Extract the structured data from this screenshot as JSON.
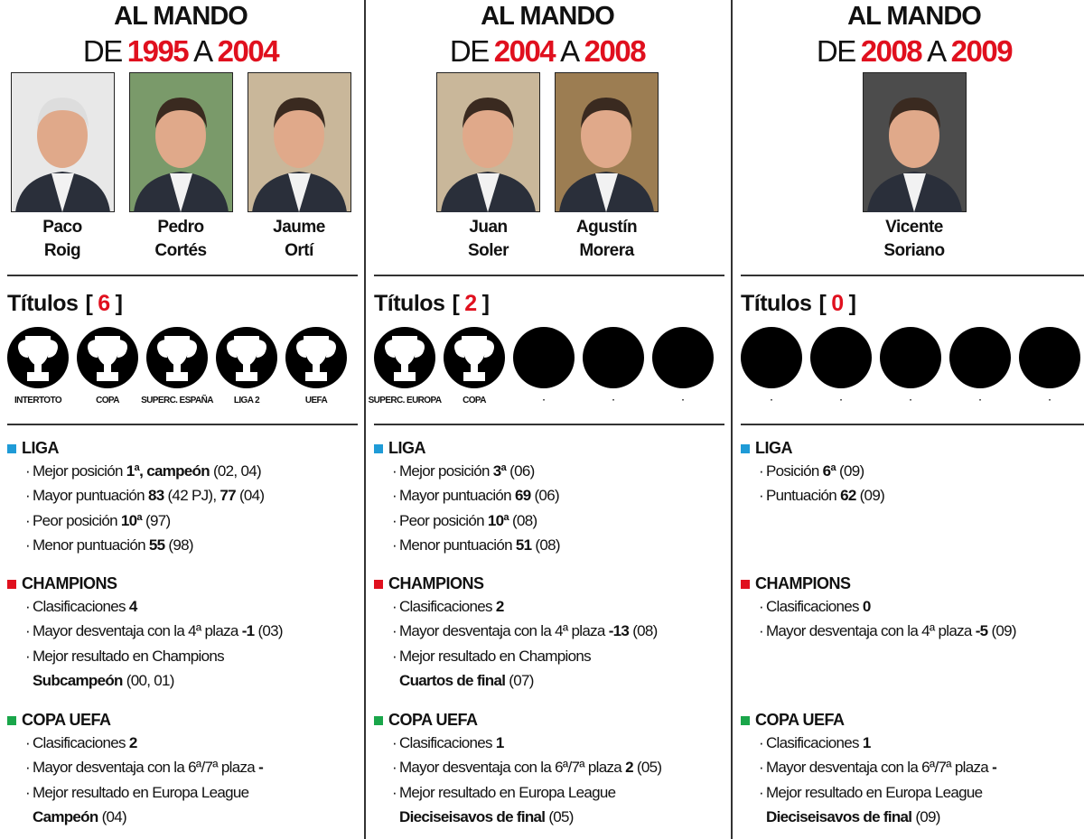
{
  "columns": [
    {
      "header": {
        "top": "AL MANDO",
        "from_word": "DE",
        "from": "1995",
        "to_word": "A",
        "to": "2004"
      },
      "people": [
        {
          "first": "Paco",
          "last": "Roig"
        },
        {
          "first": "Pedro",
          "last": "Cortés"
        },
        {
          "first": "Jaume",
          "last": "Ortí"
        }
      ],
      "titles": {
        "label": "Títulos",
        "open": "[",
        "count": 6,
        "close": "]"
      },
      "trophies": [
        {
          "label": "INTERTOTO",
          "won": true
        },
        {
          "label": "COPA",
          "won": true
        },
        {
          "label": "SUPERC. ESPAÑA",
          "won": true
        },
        {
          "label": "LIGA 2",
          "won": true
        },
        {
          "label": "UEFA",
          "won": true
        }
      ],
      "sections": [
        {
          "name": "LIGA",
          "color": "#1f9bd7",
          "lines": [
            {
              "bullet": "·",
              "parts": [
                {
                  "text": "Mejor posición "
                },
                {
                  "text": "1ª, campeón",
                  "bold": true
                },
                {
                  "text": " (02, 04)"
                }
              ]
            },
            {
              "bullet": "·",
              "parts": [
                {
                  "text": "Mayor puntuación "
                },
                {
                  "text": "83",
                  "bold": true
                },
                {
                  "text": " (42 PJ), "
                },
                {
                  "text": "77",
                  "bold": true
                },
                {
                  "text": " (04)"
                }
              ]
            },
            {
              "bullet": "·",
              "parts": [
                {
                  "text": "Peor posición "
                },
                {
                  "text": "10ª",
                  "bold": true
                },
                {
                  "text": " (97)"
                }
              ]
            },
            {
              "bullet": "·",
              "parts": [
                {
                  "text": "Menor puntuación "
                },
                {
                  "text": "55",
                  "bold": true
                },
                {
                  "text": " (98)"
                }
              ]
            }
          ]
        },
        {
          "name": "CHAMPIONS",
          "color": "#e0101e",
          "lines": [
            {
              "bullet": "·",
              "parts": [
                {
                  "text": "Clasificaciones "
                },
                {
                  "text": "4",
                  "bold": true
                }
              ]
            },
            {
              "bullet": "·",
              "parts": [
                {
                  "text": "Mayor desventaja con la 4ª plaza "
                },
                {
                  "text": "-1",
                  "bold": true
                },
                {
                  "text": " (03)"
                }
              ]
            },
            {
              "bullet": "·",
              "parts": [
                {
                  "text": "Mejor resultado en Champions"
                }
              ]
            },
            {
              "parts": [
                {
                  "text": "Subcampeón",
                  "bold": true
                },
                {
                  "text": " (00, 01)"
                }
              ]
            }
          ]
        },
        {
          "name": "COPA UEFA",
          "color": "#1aa64a",
          "lines": [
            {
              "bullet": "·",
              "parts": [
                {
                  "text": "Clasificaciones "
                },
                {
                  "text": "2",
                  "bold": true
                }
              ]
            },
            {
              "bullet": "·",
              "parts": [
                {
                  "text": "Mayor desventaja con la 6ª/7ª plaza "
                },
                {
                  "text": "-",
                  "bold": true
                }
              ]
            },
            {
              "bullet": "·",
              "parts": [
                {
                  "text": "Mejor resultado en Europa League"
                }
              ]
            },
            {
              "parts": [
                {
                  "text": "Campeón",
                  "bold": true
                },
                {
                  "text": " (04)"
                }
              ]
            }
          ]
        }
      ]
    },
    {
      "header": {
        "top": "AL MANDO",
        "from_word": "DE",
        "from": "2004",
        "to_word": "A",
        "to": "2008"
      },
      "people": [
        {
          "first": "Juan",
          "last": "Soler"
        },
        {
          "first": "Agustín",
          "last": "Morera"
        }
      ],
      "titles": {
        "label": "Títulos",
        "open": "[",
        "count": 2,
        "close": "]"
      },
      "trophies": [
        {
          "label": "SUPERC. EUROPA",
          "won": true
        },
        {
          "label": "COPA",
          "won": true
        },
        {
          "label": "·",
          "won": false
        },
        {
          "label": "·",
          "won": false
        },
        {
          "label": "·",
          "won": false
        }
      ],
      "sections": [
        {
          "name": "LIGA",
          "color": "#1f9bd7",
          "lines": [
            {
              "bullet": "·",
              "parts": [
                {
                  "text": "Mejor posición "
                },
                {
                  "text": "3ª",
                  "bold": true
                },
                {
                  "text": " (06)"
                }
              ]
            },
            {
              "bullet": "·",
              "parts": [
                {
                  "text": "Mayor puntuación "
                },
                {
                  "text": "69",
                  "bold": true
                },
                {
                  "text": " (06)"
                }
              ]
            },
            {
              "bullet": "·",
              "parts": [
                {
                  "text": "Peor posición "
                },
                {
                  "text": "10ª",
                  "bold": true
                },
                {
                  "text": " (08)"
                }
              ]
            },
            {
              "bullet": "·",
              "parts": [
                {
                  "text": "Menor puntuación "
                },
                {
                  "text": "51",
                  "bold": true
                },
                {
                  "text": " (08)"
                }
              ]
            }
          ]
        },
        {
          "name": "CHAMPIONS",
          "color": "#e0101e",
          "lines": [
            {
              "bullet": "·",
              "parts": [
                {
                  "text": "Clasificaciones "
                },
                {
                  "text": "2",
                  "bold": true
                }
              ]
            },
            {
              "bullet": "·",
              "parts": [
                {
                  "text": "Mayor desventaja con la 4ª plaza "
                },
                {
                  "text": "-13",
                  "bold": true
                },
                {
                  "text": " (08)"
                }
              ]
            },
            {
              "bullet": "·",
              "parts": [
                {
                  "text": "Mejor resultado en Champions"
                }
              ]
            },
            {
              "parts": [
                {
                  "text": "Cuartos de final",
                  "bold": true
                },
                {
                  "text": " (07)"
                }
              ]
            }
          ]
        },
        {
          "name": "COPA UEFA",
          "color": "#1aa64a",
          "lines": [
            {
              "bullet": "·",
              "parts": [
                {
                  "text": "Clasificaciones "
                },
                {
                  "text": "1",
                  "bold": true
                }
              ]
            },
            {
              "bullet": "·",
              "parts": [
                {
                  "text": "Mayor desventaja con la 6ª/7ª plaza "
                },
                {
                  "text": "2",
                  "bold": true
                },
                {
                  "text": " (05)"
                }
              ]
            },
            {
              "bullet": "·",
              "parts": [
                {
                  "text": "Mejor resultado en Europa League"
                }
              ]
            },
            {
              "parts": [
                {
                  "text": "Dieciseisavos de final",
                  "bold": true
                },
                {
                  "text": " (05)"
                }
              ]
            }
          ]
        }
      ]
    },
    {
      "header": {
        "top": "AL MANDO",
        "from_word": "DE",
        "from": "2008",
        "to_word": "A",
        "to": "2009"
      },
      "people": [
        {
          "first": "Vicente",
          "last": "Soriano"
        }
      ],
      "titles": {
        "label": "Títulos",
        "open": "[",
        "count": 0,
        "close": "]"
      },
      "trophies": [
        {
          "label": "·",
          "won": false
        },
        {
          "label": "·",
          "won": false
        },
        {
          "label": "·",
          "won": false
        },
        {
          "label": "·",
          "won": false
        },
        {
          "label": "·",
          "won": false
        }
      ],
      "sections": [
        {
          "name": "LIGA",
          "color": "#1f9bd7",
          "lines": [
            {
              "bullet": "·",
              "parts": [
                {
                  "text": "Posición "
                },
                {
                  "text": "6ª",
                  "bold": true
                },
                {
                  "text": " (09)"
                }
              ]
            },
            {
              "bullet": "·",
              "parts": [
                {
                  "text": "Puntuación "
                },
                {
                  "text": "62",
                  "bold": true
                },
                {
                  "text": " (09)"
                }
              ]
            }
          ]
        },
        {
          "name": "CHAMPIONS",
          "color": "#e0101e",
          "lines": [
            {
              "bullet": "·",
              "parts": [
                {
                  "text": "Clasificaciones "
                },
                {
                  "text": "0",
                  "bold": true
                }
              ]
            },
            {
              "bullet": "·",
              "parts": [
                {
                  "text": "Mayor desventaja con la 4ª plaza "
                },
                {
                  "text": "-5",
                  "bold": true
                },
                {
                  "text": " (09)"
                }
              ]
            }
          ]
        },
        {
          "name": "COPA UEFA",
          "color": "#1aa64a",
          "lines": [
            {
              "bullet": "·",
              "parts": [
                {
                  "text": "Clasificaciones "
                },
                {
                  "text": "1",
                  "bold": true
                }
              ]
            },
            {
              "bullet": "·",
              "parts": [
                {
                  "text": "Mayor desventaja con la 6ª/7ª plaza "
                },
                {
                  "text": "-",
                  "bold": true
                }
              ]
            },
            {
              "bullet": "·",
              "parts": [
                {
                  "text": "Mejor resultado en Europa League"
                }
              ]
            },
            {
              "parts": [
                {
                  "text": "Dieciseisavos de final",
                  "bold": true
                },
                {
                  "text": " (09)"
                }
              ]
            }
          ]
        }
      ]
    }
  ]
}
